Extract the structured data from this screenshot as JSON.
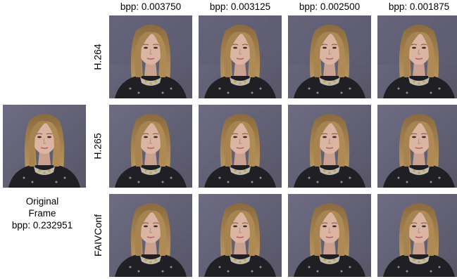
{
  "columns": [
    {
      "bpp": "bpp: 0.003750"
    },
    {
      "bpp": "bpp: 0.003125"
    },
    {
      "bpp": "bpp: 0.002500"
    },
    {
      "bpp": "bpp: 0.001875"
    }
  ],
  "rows": [
    {
      "codec": "H.264"
    },
    {
      "codec": "H.265"
    },
    {
      "codec": "FAIVConf"
    }
  ],
  "original": {
    "line1": "Original",
    "line2": "Frame",
    "line3": "bpp: 0.232951"
  }
}
